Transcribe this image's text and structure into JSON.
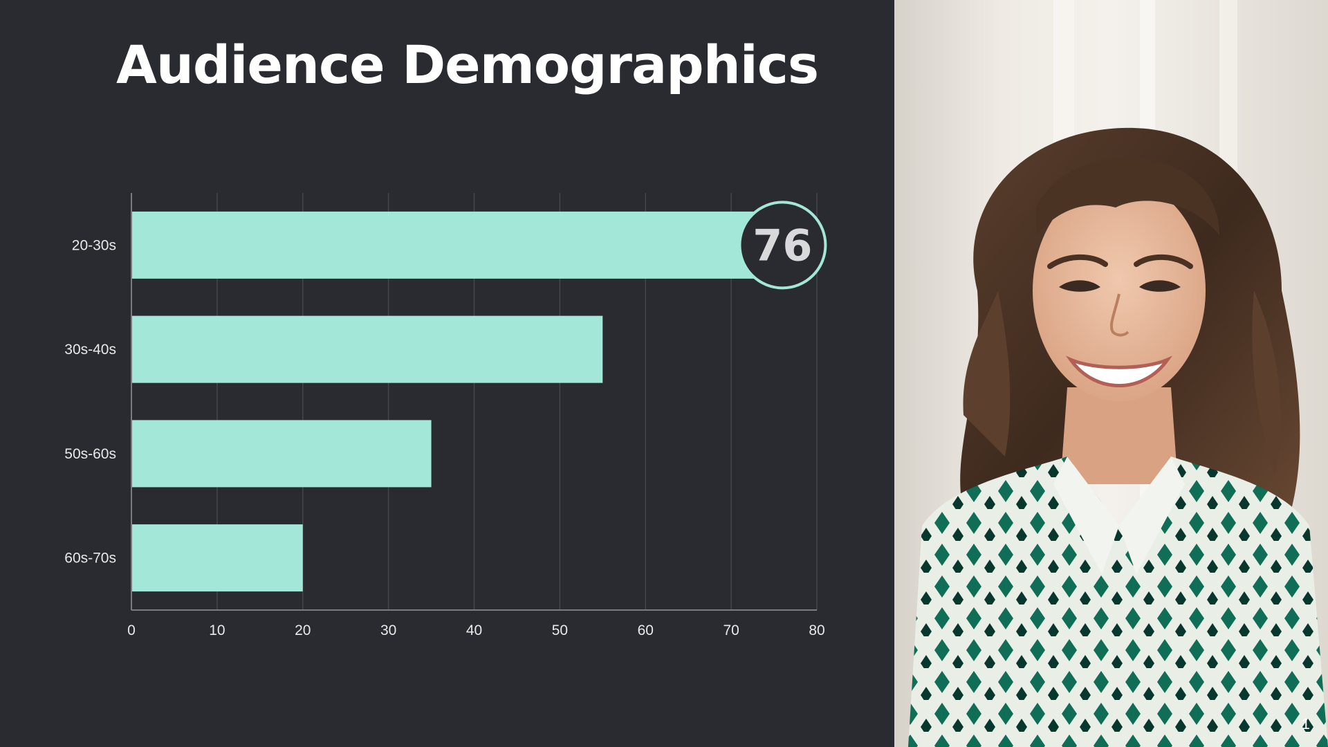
{
  "slide": {
    "title": "Audience Demographics",
    "page_number": "1"
  },
  "photo": {
    "description_icon": "smiling-woman-photo"
  },
  "colors": {
    "background": "#2a2b30",
    "bar": "#a3e7d9",
    "callout_ring": "#a3e7d9",
    "gridline": "#44464d",
    "axis": "#7a7c82",
    "text": "#e9e9ea"
  },
  "chart_data": {
    "type": "bar",
    "orientation": "horizontal",
    "categories": [
      "20-30s",
      "30s-40s",
      "50s-60s",
      "60s-70s"
    ],
    "values": [
      76,
      55,
      35,
      20
    ],
    "xlim": [
      0,
      80
    ],
    "xticks": [
      0,
      10,
      20,
      30,
      40,
      50,
      60,
      70,
      80
    ],
    "grid": true,
    "callout": {
      "category": "20-30s",
      "label": "76"
    }
  }
}
